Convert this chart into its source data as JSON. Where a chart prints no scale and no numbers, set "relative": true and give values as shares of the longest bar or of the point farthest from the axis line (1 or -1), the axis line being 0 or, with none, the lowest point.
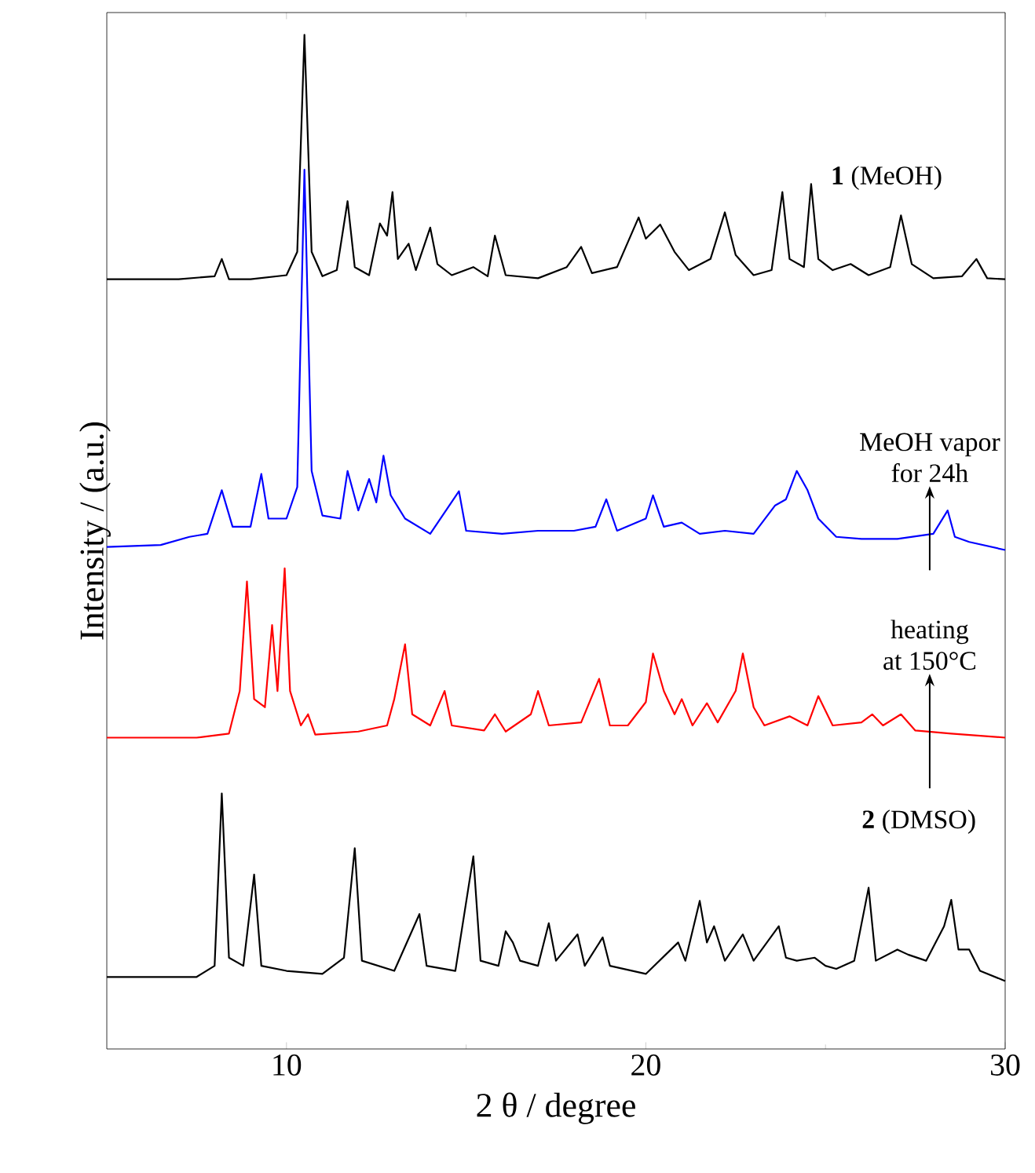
{
  "chart_data": {
    "type": "line",
    "relative": true,
    "xlabel": "2 θ  / degree",
    "ylabel": "Intensity / (a.u.)",
    "xlim": [
      5,
      30
    ],
    "xticks": [
      10,
      20,
      30
    ],
    "legend": false,
    "grid": false,
    "marker": "none",
    "line_style": "solid",
    "annotations": [
      "MeOH vapor",
      "for 24h",
      "heating",
      "at 150°C"
    ],
    "series": [
      {
        "name": "**1** (MeOH)",
        "color": "#000000",
        "x": [
          5,
          7,
          8.0,
          8.2,
          8.4,
          9,
          10,
          10.3,
          10.5,
          10.7,
          11.0,
          11.4,
          11.7,
          11.9,
          12.3,
          12.6,
          12.8,
          12.95,
          13.1,
          13.4,
          13.6,
          14.0,
          14.2,
          14.6,
          15.2,
          15.6,
          15.8,
          16.1,
          17,
          17.8,
          18.2,
          18.5,
          19.2,
          19.8,
          20.0,
          20.4,
          20.8,
          21.2,
          21.8,
          22.2,
          22.5,
          23.0,
          23.5,
          23.8,
          24.0,
          24.4,
          24.6,
          24.8,
          25.2,
          25.7,
          26.2,
          26.8,
          27.1,
          27.4,
          28,
          28.8,
          29.2,
          29.5,
          30
        ],
        "values": [
          0.759,
          0.759,
          0.762,
          0.779,
          0.759,
          0.759,
          0.763,
          0.786,
          1,
          0.786,
          0.762,
          0.768,
          0.836,
          0.771,
          0.763,
          0.814,
          0.802,
          0.845,
          0.779,
          0.794,
          0.768,
          0.81,
          0.774,
          0.763,
          0.771,
          0.762,
          0.802,
          0.763,
          0.76,
          0.771,
          0.791,
          0.765,
          0.771,
          0.82,
          0.799,
          0.813,
          0.786,
          0.768,
          0.779,
          0.825,
          0.783,
          0.763,
          0.768,
          0.845,
          0.779,
          0.771,
          0.853,
          0.779,
          0.768,
          0.774,
          0.763,
          0.771,
          0.822,
          0.774,
          0.76,
          0.762,
          0.779,
          0.76,
          0.759
        ]
      },
      {
        "color": "#0000ff",
        "x": [
          5,
          6.5,
          7.3,
          7.8,
          8.2,
          8.5,
          9.0,
          9.3,
          9.5,
          10.0,
          10.3,
          10.5,
          10.7,
          11.0,
          11.5,
          11.7,
          12.0,
          12.3,
          12.5,
          12.7,
          12.9,
          13.3,
          14.0,
          14.8,
          15.0,
          16,
          17,
          18.0,
          18.6,
          18.9,
          19.2,
          20.0,
          20.2,
          20.5,
          21,
          21.5,
          22.2,
          23,
          23.6,
          23.9,
          24.2,
          24.5,
          24.8,
          25.3,
          26,
          27,
          28.0,
          28.4,
          28.6,
          29,
          30
        ],
        "values": [
          0.495,
          0.497,
          0.505,
          0.508,
          0.551,
          0.515,
          0.515,
          0.567,
          0.523,
          0.523,
          0.554,
          0.867,
          0.57,
          0.526,
          0.523,
          0.57,
          0.531,
          0.562,
          0.539,
          0.585,
          0.546,
          0.523,
          0.508,
          0.55,
          0.511,
          0.508,
          0.511,
          0.511,
          0.515,
          0.542,
          0.511,
          0.523,
          0.546,
          0.515,
          0.519,
          0.508,
          0.511,
          0.508,
          0.536,
          0.542,
          0.57,
          0.551,
          0.523,
          0.505,
          0.503,
          0.503,
          0.508,
          0.531,
          0.505,
          0.5,
          0.492
        ]
      },
      {
        "color": "#ff0000",
        "x": [
          5,
          7.5,
          8.4,
          8.7,
          8.9,
          9.1,
          9.4,
          9.6,
          9.75,
          9.95,
          10.1,
          10.4,
          10.6,
          10.8,
          12,
          12.8,
          13.0,
          13.3,
          13.5,
          14.0,
          14.4,
          14.6,
          15.5,
          15.8,
          16.1,
          16.8,
          17.0,
          17.3,
          18.2,
          18.7,
          19.0,
          19.5,
          20.0,
          20.2,
          20.5,
          20.8,
          21.0,
          21.3,
          21.7,
          22.0,
          22.5,
          22.7,
          23.0,
          23.3,
          24.0,
          24.5,
          24.8,
          25.2,
          26.0,
          26.3,
          26.6,
          27.1,
          27.5,
          28.5,
          30
        ],
        "values": [
          0.307,
          0.307,
          0.311,
          0.353,
          0.461,
          0.345,
          0.337,
          0.418,
          0.353,
          0.474,
          0.353,
          0.319,
          0.33,
          0.31,
          0.313,
          0.319,
          0.345,
          0.399,
          0.33,
          0.319,
          0.353,
          0.319,
          0.314,
          0.33,
          0.313,
          0.33,
          0.353,
          0.319,
          0.322,
          0.365,
          0.319,
          0.319,
          0.342,
          0.39,
          0.353,
          0.33,
          0.345,
          0.319,
          0.341,
          0.322,
          0.353,
          0.39,
          0.337,
          0.319,
          0.328,
          0.319,
          0.348,
          0.319,
          0.322,
          0.33,
          0.319,
          0.33,
          0.314,
          0.311,
          0.307
        ]
      },
      {
        "name": "**2** (DMSO)",
        "color": "#000000",
        "x": [
          5,
          7.5,
          8.0,
          8.2,
          8.4,
          8.8,
          9.1,
          9.3,
          10,
          11,
          11.6,
          11.9,
          12.1,
          13,
          13.7,
          13.9,
          14.7,
          15.2,
          15.4,
          15.9,
          16.1,
          16.3,
          16.5,
          17.0,
          17.3,
          17.5,
          18.1,
          18.3,
          18.8,
          19.0,
          20,
          20.9,
          21.1,
          21.5,
          21.7,
          21.9,
          22.2,
          22.7,
          23.0,
          23.7,
          23.9,
          24.2,
          24.7,
          25.0,
          25.3,
          25.8,
          26.2,
          26.4,
          27.0,
          27.3,
          27.8,
          28.3,
          28.5,
          28.7,
          29,
          29.3,
          30
        ],
        "values": [
          0.071,
          0.071,
          0.082,
          0.252,
          0.09,
          0.082,
          0.172,
          0.082,
          0.077,
          0.074,
          0.09,
          0.198,
          0.087,
          0.077,
          0.133,
          0.082,
          0.077,
          0.19,
          0.087,
          0.082,
          0.116,
          0.105,
          0.087,
          0.082,
          0.124,
          0.087,
          0.113,
          0.082,
          0.11,
          0.082,
          0.074,
          0.105,
          0.087,
          0.146,
          0.105,
          0.121,
          0.087,
          0.113,
          0.087,
          0.121,
          0.09,
          0.087,
          0.09,
          0.082,
          0.079,
          0.087,
          0.159,
          0.087,
          0.098,
          0.093,
          0.087,
          0.121,
          0.147,
          0.098,
          0.098,
          0.077,
          0.067
        ]
      }
    ]
  }
}
